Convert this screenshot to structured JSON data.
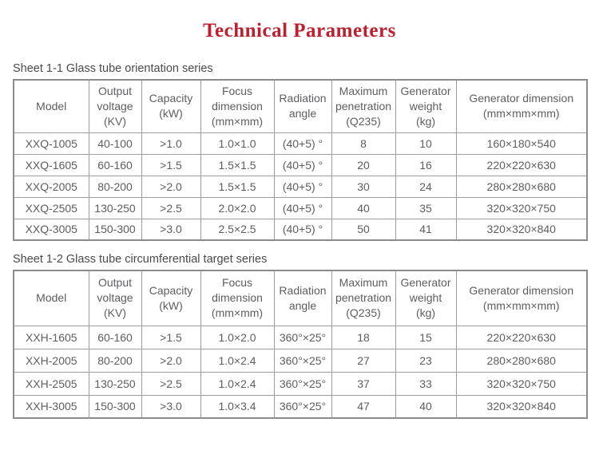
{
  "title": "Technical Parameters",
  "colors": {
    "title_red": "#bd1f2f",
    "table_text_gray": "#5d5e60",
    "caption_gray": "#4a4a4c",
    "border_gray": "#9a9c9e"
  },
  "tables": [
    {
      "caption": "Sheet 1-1 Glass tube orientation series",
      "headers": [
        "Model",
        "Output\nvoltage\n(KV)",
        "Capacity\n(kW)",
        "Focus\ndimension\n(mm×mm)",
        "Radiation\nangle",
        "Maximum\npenetration\n(Q235)",
        "Generator\nweight\n(kg)",
        "Generator dimension\n(mm×mm×mm)"
      ],
      "rows": [
        [
          "XXQ-1005",
          "40-100",
          ">1.0",
          "1.0×1.0",
          "(40+5) °",
          "8",
          "10",
          "160×180×540"
        ],
        [
          "XXQ-1605",
          "60-160",
          ">1.5",
          "1.5×1.5",
          "(40+5) °",
          "20",
          "16",
          "220×220×630"
        ],
        [
          "XXQ-2005",
          "80-200",
          ">2.0",
          "1.5×1.5",
          "(40+5) °",
          "30",
          "24",
          "280×280×680"
        ],
        [
          "XXQ-2505",
          "130-250",
          ">2.5",
          "2.0×2.0",
          "(40+5) °",
          "40",
          "35",
          "320×320×750"
        ],
        [
          "XXQ-3005",
          "150-300",
          ">3.0",
          "2.5×2.5",
          "(40+5) °",
          "50",
          "41",
          "320×320×840"
        ]
      ]
    },
    {
      "caption": "Sheet 1-2 Glass tube circumferential target series",
      "headers": [
        "Model",
        "Output\nvoltage\n(KV)",
        "Capacity\n(kW)",
        "Focus\ndimension\n(mm×mm)",
        "Radiation\nangle",
        "Maximum\npenetration\n(Q235)",
        "Generator\nweight\n(kg)",
        "Generator dimension\n(mm×mm×mm)"
      ],
      "rows": [
        [
          "XXH-1605",
          "60-160",
          ">1.5",
          "1.0×2.0",
          "360°×25°",
          "18",
          "15",
          "220×220×630"
        ],
        [
          "XXH-2005",
          "80-200",
          ">2.0",
          "1.0×2.4",
          "360°×25°",
          "27",
          "23",
          "280×280×680"
        ],
        [
          "XXH-2505",
          "130-250",
          ">2.5",
          "1.0×2.4",
          "360°×25°",
          "37",
          "33",
          "320×320×750"
        ],
        [
          "XXH-3005",
          "150-300",
          ">3.0",
          "1.0×3.4",
          "360°×25°",
          "47",
          "40",
          "320×320×840"
        ]
      ]
    }
  ]
}
